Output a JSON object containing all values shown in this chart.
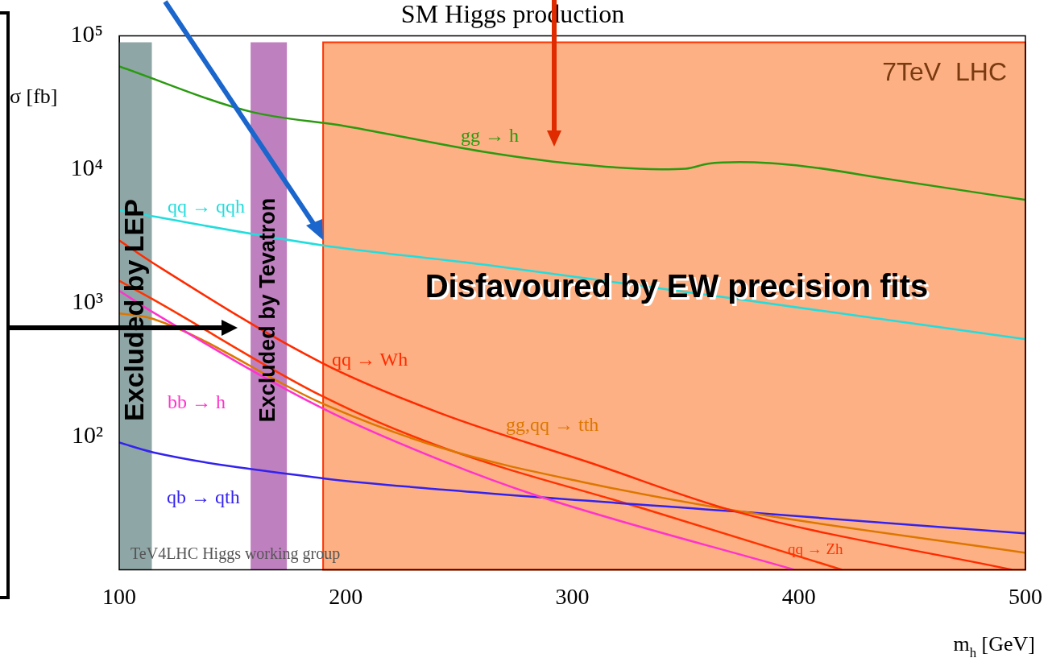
{
  "chart_data": {
    "type": "line",
    "title": "SM Higgs production",
    "xlabel": "m$_{h}$ [GeV]",
    "ylabel": "σ [fb]",
    "xlim": [
      100,
      500
    ],
    "xticks": [
      100,
      200,
      300,
      400,
      500
    ],
    "ylim": [
      10,
      100000
    ],
    "yticks": [
      {
        "value": 100,
        "label": "10²"
      },
      {
        "value": 1000,
        "label": "10³"
      },
      {
        "value": 10000,
        "label": "10⁴"
      },
      {
        "value": 100000,
        "label": "10⁵"
      }
    ],
    "log": "y",
    "grid": false,
    "legend": false,
    "marker": "none",
    "line_style": "solid",
    "series": [
      {
        "name": "gg → h",
        "color": "#2a9a10",
        "x": [
          100,
          158,
          200,
          261,
          300,
          339,
          350,
          360,
          374,
          403,
          438,
          500
        ],
        "values": [
          59000,
          27000,
          21000,
          13500,
          11000,
          10000,
          10100,
          11000,
          11300,
          10500,
          8500,
          5900
        ]
      },
      {
        "name": "qq → qqh",
        "color": "#22dddd",
        "x": [
          100,
          190,
          261,
          367,
          500
        ],
        "values": [
          4910,
          2690,
          1930,
          1100,
          533
        ]
      },
      {
        "name": "qq → Wh",
        "color": "#ff2a00",
        "x": [
          100,
          115,
          190,
          243,
          307,
          372,
          494
        ],
        "values": [
          2930,
          1980,
          351,
          146,
          64,
          27.3,
          10
        ]
      },
      {
        "name": "bb → h",
        "color": "#ff33cc",
        "x": [
          100,
          115,
          190,
          243,
          285,
          398
        ],
        "values": [
          1230,
          846,
          161,
          65,
          35.6,
          10
        ]
      },
      {
        "name": "gg,qq → tth",
        "color": "#dd7700",
        "x": [
          100,
          115,
          190,
          243,
          307,
          372,
          500
        ],
        "values": [
          834,
          757,
          175,
          81,
          44.5,
          27.7,
          13.4
        ]
      },
      {
        "name": "qb → qth",
        "color": "#3322ee",
        "x": [
          100,
          115,
          190,
          243,
          372,
          500
        ],
        "values": [
          89.6,
          75.7,
          48.4,
          39.8,
          27.3,
          18.7
        ]
      },
      {
        "name": "qq → Zh",
        "color": "#ff3300",
        "x": [
          100,
          115,
          190,
          243,
          332,
          419
        ],
        "values": [
          1460,
          1057,
          198,
          82,
          28.5,
          10
        ]
      }
    ],
    "bands": [
      {
        "axis": "x",
        "from": 100,
        "to": 114.4,
        "label": "Excluded by LEP",
        "color": "#8fa6a6"
      },
      {
        "axis": "x",
        "from": 158,
        "to": 174,
        "label": "Excluded by Tevatron",
        "color": "#bf80bf"
      },
      {
        "axis": "x",
        "from": 190,
        "to": 500,
        "label": "Disfavoured by EW precision fits",
        "color": "#fdb083"
      }
    ],
    "annotations": [
      "7TeV  LHC",
      "TeV4LHC Higgs working group"
    ]
  }
}
